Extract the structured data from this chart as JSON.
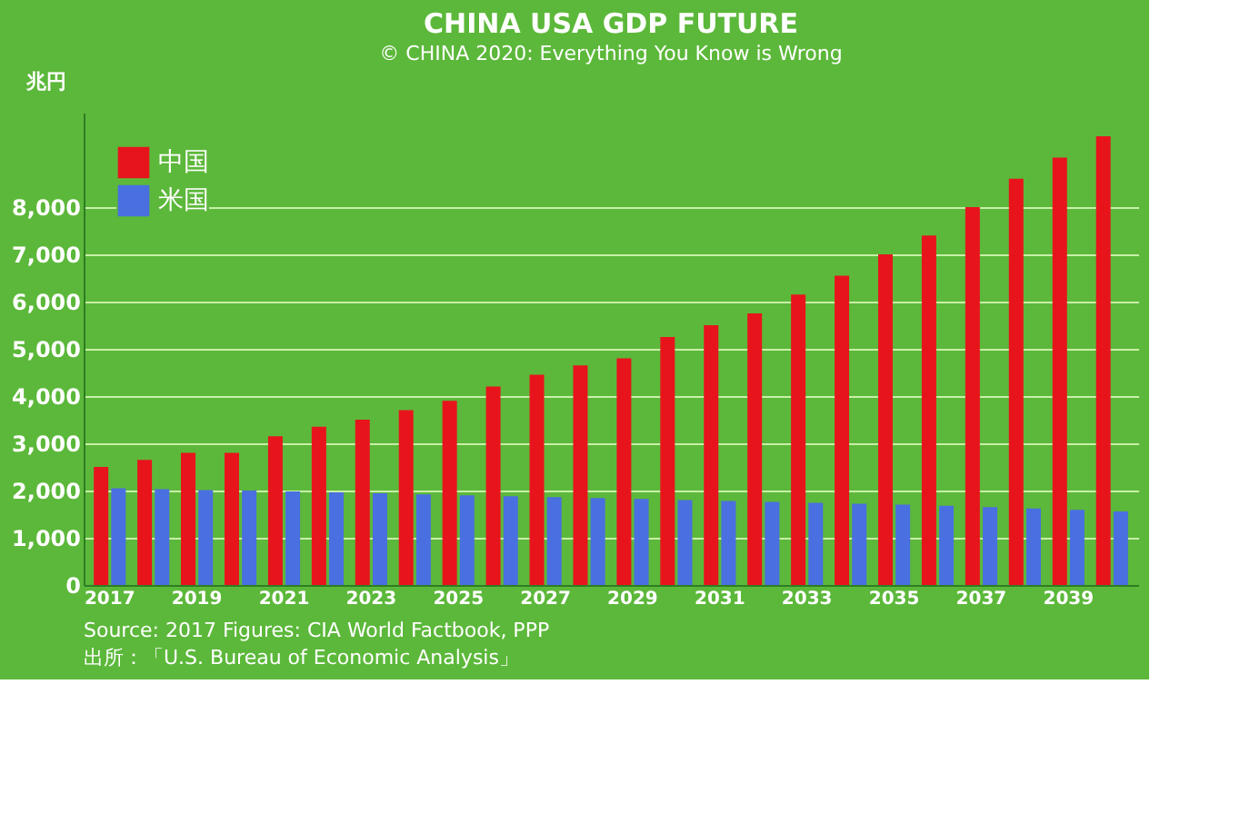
{
  "chart_data": {
    "type": "bar",
    "title": "CHINA USA GDP FUTURE",
    "subtitle": "© CHINA 2020: Everything You Know is Wrong",
    "ylabel": "兆円",
    "categories": [
      "2017",
      null,
      "2019",
      null,
      "2021",
      null,
      "2023",
      null,
      "2025",
      null,
      "2027",
      null,
      "2029",
      null,
      "2031",
      null,
      "2033",
      null,
      "2035",
      null,
      "2037",
      null,
      "2039",
      null
    ],
    "series": [
      {
        "name": "中国",
        "color": "#e8141c",
        "values": [
          2500,
          2650,
          2800,
          2800,
          3150,
          3350,
          3500,
          3700,
          3900,
          4200,
          4450,
          4650,
          4800,
          5250,
          5500,
          5750,
          6150,
          6550,
          7000,
          7400,
          8000,
          8600,
          9050,
          9500
        ]
      },
      {
        "name": "米国",
        "color": "#4a6fe0",
        "values": [
          2050,
          2030,
          2010,
          2000,
          1980,
          1960,
          1940,
          1920,
          1900,
          1880,
          1860,
          1840,
          1820,
          1800,
          1780,
          1760,
          1740,
          1720,
          1700,
          1680,
          1650,
          1620,
          1590,
          1560
        ]
      }
    ],
    "ylim": [
      0,
      10000
    ],
    "yticks": [
      0,
      {
        "value": 1000,
        "label": "1,000"
      },
      {
        "value": 2000,
        "label": "2,000"
      },
      {
        "value": 3000,
        "label": "3,000"
      },
      {
        "value": 4000,
        "label": "4,000"
      },
      {
        "value": 5000,
        "label": "5,000"
      },
      {
        "value": 6000,
        "label": "6,000"
      },
      {
        "value": 7000,
        "label": "7,000"
      },
      {
        "value": 8000,
        "label": "8,000"
      }
    ],
    "grid": "y",
    "legend": "top left",
    "annotations": [
      "Source: 2017 Figures: CIA World Factbook, PPP",
      "出所：「U.S. Bureau of Economic Analysis」"
    ]
  }
}
